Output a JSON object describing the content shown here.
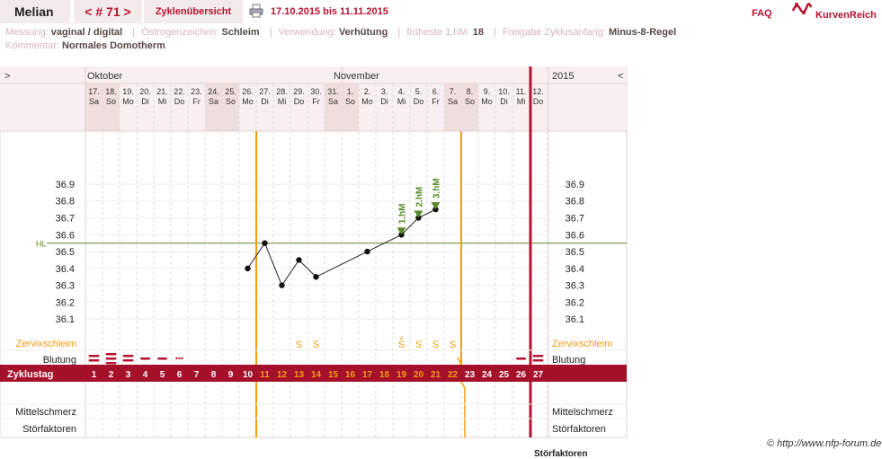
{
  "header": {
    "name": "Melian",
    "cycle": "< # 71 >",
    "overview": "Zyklenübersicht",
    "date_range": "17.10.2015 bis 11.11.2015",
    "faq": "FAQ",
    "logo": "KurvenReich",
    "print_icon": "printer-icon"
  },
  "info": {
    "messung_label": "Messung:",
    "messung": "vaginal / digital",
    "oestrogen_label": "Östrogenzeichen:",
    "oestrogen": "Schleim",
    "verwendung_label": "Verwendung:",
    "verwendung": "Verhütung",
    "frueheste_label": "früheste 1.hM:",
    "frueheste": "18",
    "freigabe_label": "Freigabe Zyklusanfang:",
    "freigabe": "Minus-8-Regel",
    "kommentar_label": "Kommentar:",
    "kommentar": "Normales Domotherm"
  },
  "chart_data": {
    "type": "line",
    "title": "",
    "nav_left": ">",
    "nav_right": "<",
    "year": "2015",
    "months": [
      "Oktober",
      "November"
    ],
    "days": [
      {
        "d": "17.",
        "w": "Sa"
      },
      {
        "d": "18.",
        "w": "So"
      },
      {
        "d": "19.",
        "w": "Mo"
      },
      {
        "d": "20.",
        "w": "Di"
      },
      {
        "d": "21.",
        "w": "Mi"
      },
      {
        "d": "22.",
        "w": "Do"
      },
      {
        "d": "23.",
        "w": "Fr"
      },
      {
        "d": "24.",
        "w": "Sa"
      },
      {
        "d": "25.",
        "w": "So"
      },
      {
        "d": "26.",
        "w": "Mo"
      },
      {
        "d": "27.",
        "w": "Di"
      },
      {
        "d": "28.",
        "w": "Mi"
      },
      {
        "d": "29.",
        "w": "Do"
      },
      {
        "d": "30.",
        "w": "Fr"
      },
      {
        "d": "31.",
        "w": "Sa"
      },
      {
        "d": "1.",
        "w": "So"
      },
      {
        "d": "2.",
        "w": "Mo"
      },
      {
        "d": "3.",
        "w": "Di"
      },
      {
        "d": "4.",
        "w": "Mi"
      },
      {
        "d": "5.",
        "w": "Do"
      },
      {
        "d": "6.",
        "w": "Fr"
      },
      {
        "d": "7.",
        "w": "Sa"
      },
      {
        "d": "8.",
        "w": "So"
      },
      {
        "d": "9.",
        "w": "Mo"
      },
      {
        "d": "10.",
        "w": "Di"
      },
      {
        "d": "11.",
        "w": "Mi"
      },
      {
        "d": "12.",
        "w": "Do"
      }
    ],
    "weekend_days": [
      1,
      2,
      8,
      9,
      15,
      16,
      22,
      23
    ],
    "y_ticks": [
      36.9,
      36.8,
      36.7,
      36.6,
      36.5,
      36.4,
      36.3,
      36.2,
      36.1
    ],
    "ylim": [
      36.0,
      37.15
    ],
    "hl_label": "HL",
    "hl_value": 36.55,
    "temperatures": [
      {
        "day": 10,
        "temp": 36.4
      },
      {
        "day": 11,
        "temp": 36.55
      },
      {
        "day": 12,
        "temp": 36.3
      },
      {
        "day": 13,
        "temp": 36.45
      },
      {
        "day": 14,
        "temp": 36.35
      },
      {
        "day": 17,
        "temp": 36.5
      },
      {
        "day": 19,
        "temp": 36.6
      },
      {
        "day": 20,
        "temp": 36.7
      },
      {
        "day": 21,
        "temp": 36.75
      }
    ],
    "hm_markers": [
      {
        "day": 19,
        "label": "1.hM"
      },
      {
        "day": 20,
        "label": "2.hM"
      },
      {
        "day": 21,
        "label": "3.hM"
      }
    ],
    "orange_lines_after_day": [
      10,
      22
    ],
    "red_line_after_day": 26,
    "rows": {
      "zervix_label": "Zervixschleim",
      "blutung_label": "Blutung",
      "zyklustag_label": "Zyklustag",
      "mittelschmerz_label": "Mittelschmerz",
      "stoerfaktoren_label": "Störfaktoren"
    },
    "zervix": [
      {
        "day": 13,
        "sym": "S"
      },
      {
        "day": 14,
        "sym": "S"
      },
      {
        "day": 19,
        "sym": "S+"
      },
      {
        "day": 20,
        "sym": "S"
      },
      {
        "day": 21,
        "sym": "S"
      },
      {
        "day": 22,
        "sym": "S"
      }
    ],
    "bleeding": [
      {
        "day": 1,
        "level": "heavy"
      },
      {
        "day": 2,
        "level": "heavy3"
      },
      {
        "day": 3,
        "level": "medium"
      },
      {
        "day": 4,
        "level": "light"
      },
      {
        "day": 5,
        "level": "light"
      },
      {
        "day": 6,
        "level": "spotting"
      },
      {
        "day": 26,
        "level": "light"
      },
      {
        "day": 27,
        "level": "medium"
      }
    ],
    "cycle_days": [
      "1",
      "2",
      "3",
      "4",
      "5",
      "6",
      "7",
      "8",
      "9",
      "10",
      "11",
      "12",
      "13",
      "14",
      "15",
      "16",
      "17",
      "18",
      "19",
      "20",
      "21",
      "22",
      "23",
      "24",
      "25",
      "26",
      "27"
    ],
    "orange_cycle_days": [
      11,
      12,
      13,
      14,
      15,
      16,
      17,
      18,
      19,
      20,
      21,
      22
    ]
  },
  "footer": {
    "copyright": "© http://www.nfp-forum.de",
    "cut_text": "Störfaktoren"
  },
  "colors": {
    "brand": "#b5122e",
    "orange": "#f39c12",
    "green": "#5a8a2a",
    "cycle_bar": "#a5102a"
  }
}
